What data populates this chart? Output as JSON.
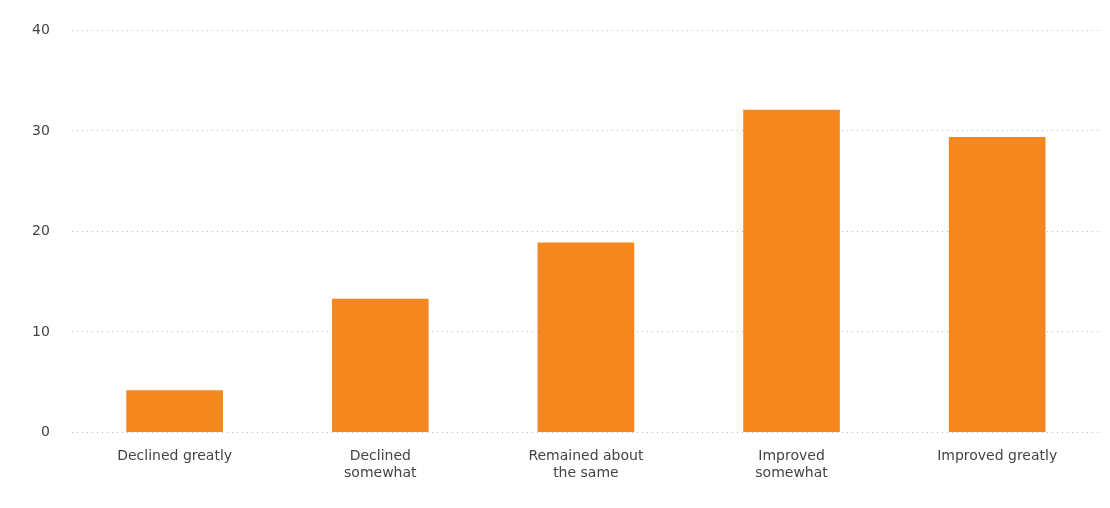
{
  "chart_data": {
    "type": "bar",
    "categories": [
      "Declined greatly",
      "Declined somewhat",
      "Remained about the same",
      "Improved somewhat",
      "Improved greatly"
    ],
    "values": [
      4.2,
      13.3,
      18.9,
      32.1,
      29.4
    ],
    "color": "#f5871f",
    "ylim": [
      0,
      40
    ],
    "yticks": [
      0,
      10,
      20,
      30,
      40
    ],
    "grid": "y",
    "legend": false
  }
}
